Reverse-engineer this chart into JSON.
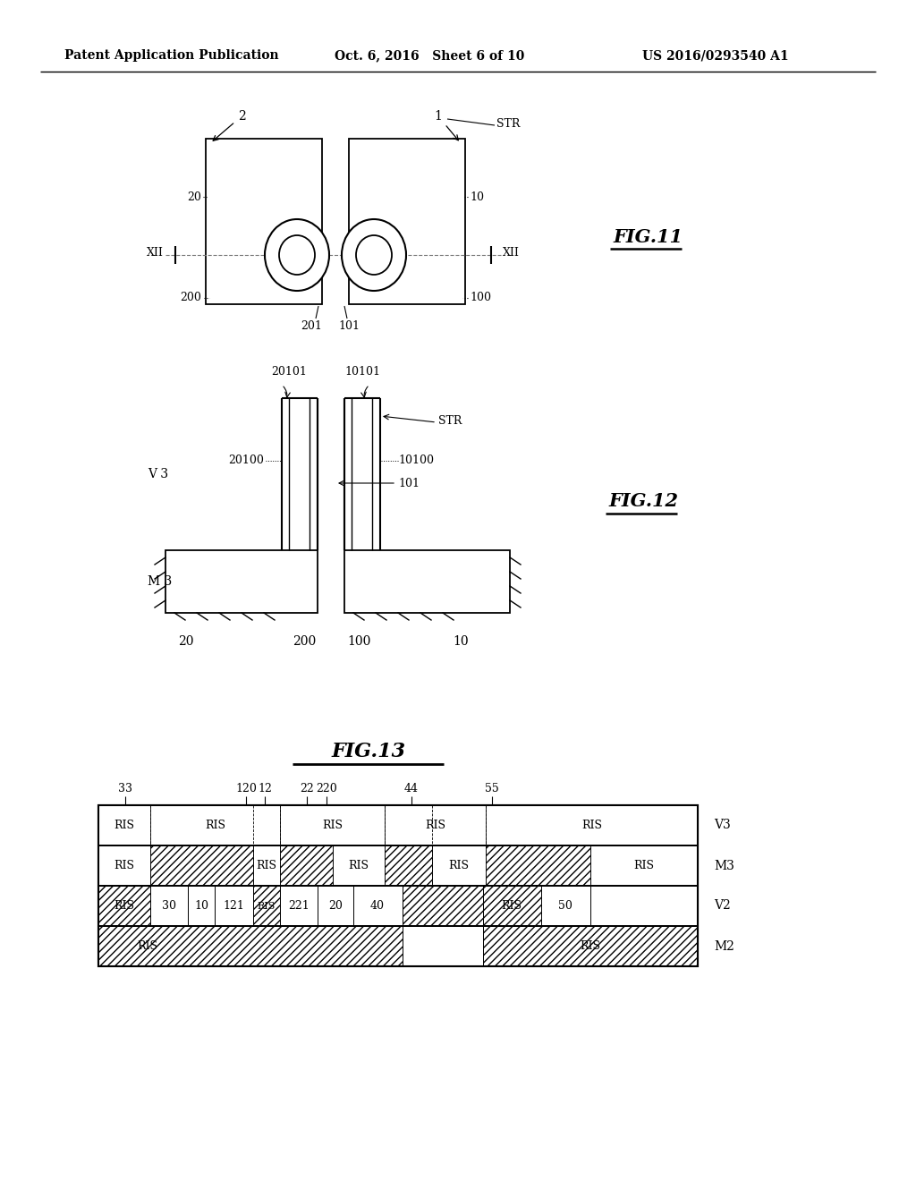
{
  "bg_color": "#ffffff",
  "header_left": "Patent Application Publication",
  "header_mid": "Oct. 6, 2016   Sheet 6 of 10",
  "header_right": "US 2016/0293540 A1",
  "fig11_label": "FIG.11",
  "fig12_label": "FIG.12",
  "fig13_label": "FIG.13"
}
